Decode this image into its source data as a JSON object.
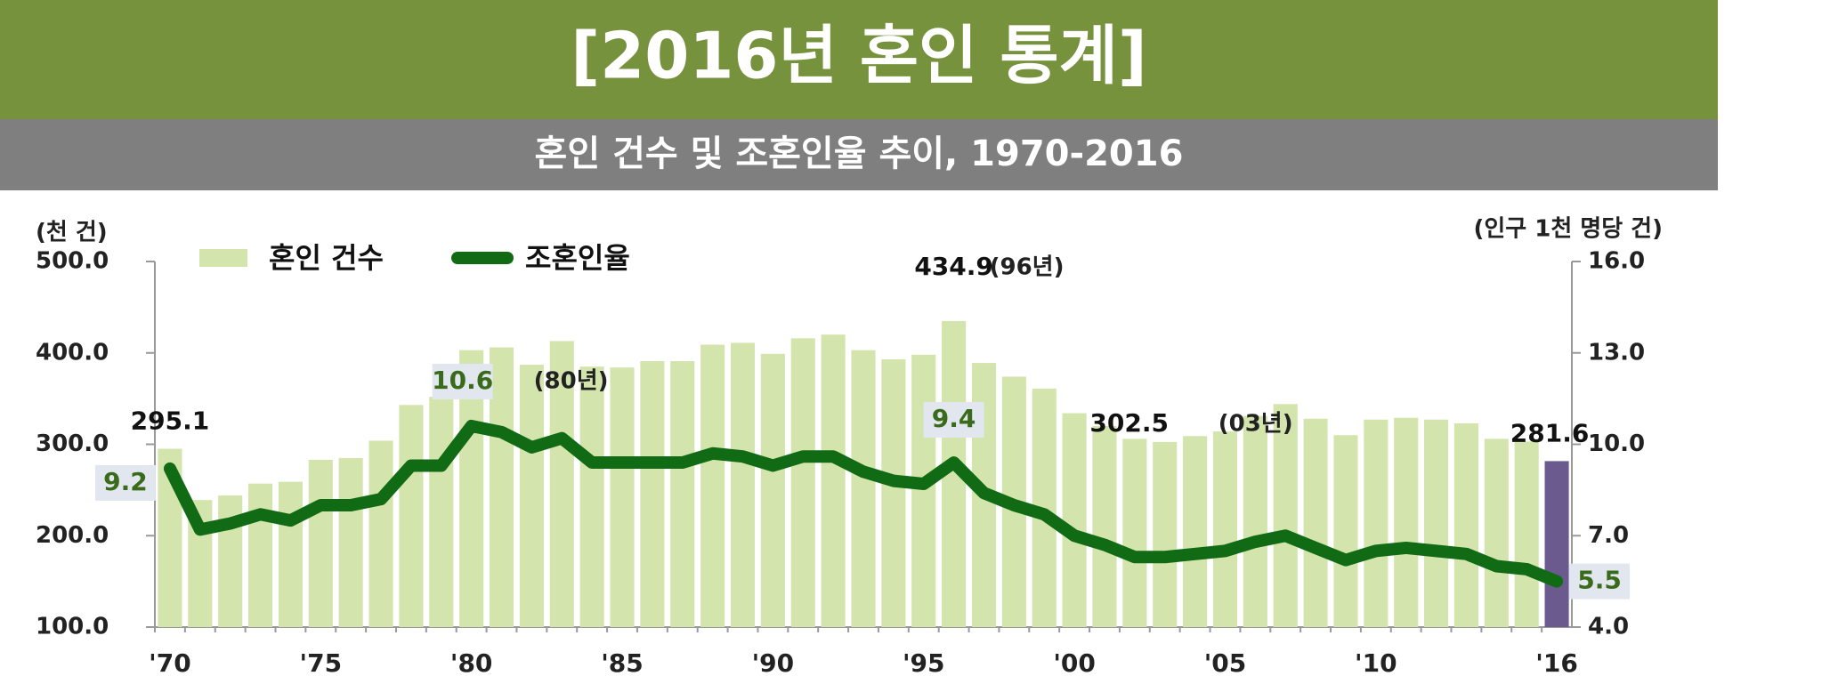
{
  "header": {
    "title": "[2016년 혼인 통계]",
    "subtitle": "혼인 건수 및 조혼인율 추이, 1970-2016"
  },
  "chart_data": {
    "type": "bar",
    "y_label": "(천 건)",
    "y2_label": "(인구 1천 명당 건)",
    "categories": [
      "'70",
      null,
      null,
      null,
      null,
      "'75",
      null,
      null,
      null,
      null,
      "'80",
      null,
      null,
      null,
      null,
      "'85",
      null,
      null,
      null,
      null,
      "'90",
      null,
      null,
      null,
      null,
      "'95",
      null,
      null,
      null,
      null,
      "'00",
      null,
      null,
      null,
      null,
      "'05",
      null,
      null,
      null,
      null,
      "'10",
      null,
      null,
      null,
      null,
      null,
      "'16"
    ],
    "series": [
      {
        "name": "혼인 건수",
        "type": "bar",
        "color": "#d4e4ad",
        "highlight_color": "#6b5a8e",
        "values": [
          295.1,
          239,
          244,
          257,
          259,
          283,
          285,
          304,
          343,
          352,
          403,
          406,
          387,
          413,
          385,
          384,
          391,
          391,
          409,
          411,
          399,
          416,
          420,
          403,
          393,
          398,
          434.9,
          389,
          374,
          361,
          334,
          320,
          306,
          302.5,
          309,
          314,
          331,
          344,
          328,
          310,
          327,
          329,
          327,
          323,
          306,
          303,
          281.6
        ]
      },
      {
        "name": "조혼인율",
        "type": "line",
        "axis": "y2",
        "color": "#116b15",
        "values": [
          9.2,
          7.2,
          7.4,
          7.7,
          7.5,
          8.0,
          8.0,
          8.2,
          9.3,
          9.3,
          10.6,
          10.4,
          9.9,
          10.2,
          9.4,
          9.4,
          9.4,
          9.4,
          9.7,
          9.6,
          9.3,
          9.6,
          9.6,
          9.1,
          8.8,
          8.7,
          9.4,
          8.4,
          8.0,
          7.7,
          7.0,
          6.7,
          6.3,
          6.3,
          6.4,
          6.5,
          6.8,
          7.0,
          6.6,
          6.2,
          6.5,
          6.6,
          6.5,
          6.4,
          6.0,
          5.9,
          5.5
        ]
      }
    ],
    "annotations": [
      "(96년)",
      "(80년)",
      "(03년)"
    ],
    "ylim": [
      100,
      500
    ],
    "yticks": [
      {
        "value": 100,
        "label": "100.0"
      },
      {
        "value": 200,
        "label": "200.0"
      },
      {
        "value": 300,
        "label": "300.0"
      },
      {
        "value": 400,
        "label": "400.0"
      },
      {
        "value": 500,
        "label": "500.0"
      }
    ],
    "y2lim": [
      4,
      16
    ],
    "y2ticks": [
      {
        "value": 4,
        "label": "4.0"
      },
      {
        "value": 7,
        "label": "7.0"
      },
      {
        "value": 10,
        "label": "10.0"
      },
      {
        "value": 13,
        "label": "13.0"
      },
      {
        "value": 16,
        "label": "16.0"
      }
    ],
    "legend": "top-left"
  }
}
